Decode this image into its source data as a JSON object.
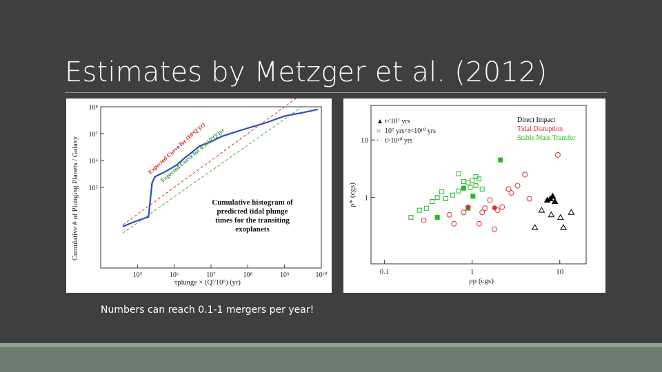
{
  "slide": {
    "title": "Estimates by Metzger et al. (2012)",
    "caption": "Numbers can reach 0.1-1 mergers per year!"
  },
  "chart_data": [
    {
      "type": "line",
      "ylabel": "Cumulative # of Plunging Planets / Galaxy",
      "xlabel": "τplunge × (Q'/10⁶) (yr)",
      "log_x": true,
      "log_y": true,
      "xlim": [
        10000,
        10000000000
      ],
      "ylim": [
        100,
        100000000
      ],
      "x_ticks": [
        "10⁵",
        "10⁶",
        "10⁷",
        "10⁸",
        "10⁹",
        "10¹⁰"
      ],
      "y_ticks": [
        "10⁸",
        "10⁷",
        "10⁶",
        "10⁵"
      ],
      "annotation": "Cumulative histogram of predicted tidal plunge times for the transiting exoplanets",
      "curve_labels": [
        "Expected Curve for (10⁵Q'yr)",
        "Expected Curve for 0.1(10⁵Q')yr"
      ],
      "series": [
        {
          "name": "Cumulative histogram",
          "color": "#2f49c9",
          "x": [
            40000,
            90000,
            200000,
            250000,
            300000,
            500000,
            800000,
            1200000,
            2000000,
            3000000,
            5000000,
            10000000,
            20000000,
            50000000,
            100000000,
            300000000,
            1000000000,
            3000000000,
            8000000000
          ],
          "y": [
            3500,
            5500,
            8000,
            150000,
            250000,
            350000,
            500000,
            700000,
            1300000,
            2000000,
            3500000,
            5000000,
            8000000,
            12000000,
            16000000,
            25000000,
            45000000,
            60000000,
            80000000
          ]
        },
        {
          "name": "Expected Curve (red)",
          "color": "#d03030",
          "x": [
            40000,
            3000000000
          ],
          "y": [
            4000,
            300000000
          ]
        },
        {
          "name": "Expected Curve (green)",
          "color": "#3aa83a",
          "x": [
            40000,
            3000000000
          ],
          "y": [
            2000,
            100000000
          ]
        }
      ]
    },
    {
      "type": "scatter",
      "xlabel": "ρp (cgs)",
      "ylabel": "ρ* (cgs)",
      "log_x": true,
      "log_y": true,
      "xlim": [
        0.07,
        20
      ],
      "ylim": [
        0.07,
        40
      ],
      "x_ticks": [
        "0.1",
        "1",
        "10"
      ],
      "y_ticks": [
        "10",
        "1"
      ],
      "legend": {
        "placement": "top",
        "symbols": [
          "t<10⁷ yrs",
          "10⁷ yrs<t<10¹⁰ yrs",
          "t>10¹⁰ yrs"
        ],
        "colors": [
          "Direct Impact",
          "Tidal Disruption",
          "Stable Mass Transfer"
        ]
      },
      "color_map": {
        "Direct Impact": "#000000",
        "Tidal Disruption": "#e03030",
        "Stable Mass Transfer": "#22bb22"
      },
      "series": [
        {
          "name": "Direct Impact",
          "x": [
            7.2,
            7.8,
            8.3,
            8.8,
            6.2,
            8.0,
            10.2,
            13.5,
            5.2,
            11.0
          ],
          "y": [
            0.9,
            0.95,
            1.05,
            0.85,
            0.6,
            0.5,
            0.45,
            0.55,
            0.3,
            0.3
          ]
        },
        {
          "name": "Tidal Disruption",
          "x": [
            2.2,
            1.4,
            1.3,
            1.6,
            2.6,
            1.2,
            0.8,
            0.55,
            0.62,
            1.95,
            4.0,
            3.3,
            0.28,
            9.5,
            2.8,
            4.5,
            1.8
          ],
          "y": [
            0.68,
            0.65,
            0.55,
            0.9,
            1.4,
            0.35,
            0.55,
            0.5,
            0.35,
            0.6,
            2.5,
            1.6,
            0.4,
            5.5,
            1.2,
            0.95,
            0.28
          ]
        },
        {
          "name": "Stable Mass Transfer",
          "x": [
            0.9,
            1.0,
            1.1,
            0.8,
            0.7,
            0.6,
            0.5,
            0.45,
            0.4,
            1.3,
            0.35,
            0.25,
            0.3,
            0.2,
            0.7,
            1.1,
            0.95,
            1.2
          ],
          "y": [
            1.8,
            2.0,
            1.6,
            1.9,
            1.3,
            1.1,
            0.95,
            1.25,
            1.0,
            1.4,
            0.85,
            0.6,
            0.65,
            0.45,
            2.6,
            2.3,
            1.5,
            2.1
          ]
        }
      ],
      "highlight_points": [
        {
          "x": 2.1,
          "y": 4.5,
          "color": "#22bb22"
        },
        {
          "x": 1.02,
          "y": 1.05,
          "color": "#22bb22"
        },
        {
          "x": 0.9,
          "y": 0.65,
          "color": "#22bb22"
        },
        {
          "x": 0.4,
          "y": 0.45,
          "color": "#22bb22"
        },
        {
          "x": 0.8,
          "y": 1.45,
          "color": "#22bb22"
        },
        {
          "x": 0.9,
          "y": 0.68,
          "color": "#e03030"
        },
        {
          "x": 1.8,
          "y": 0.66,
          "color": "#e03030"
        }
      ]
    }
  ]
}
